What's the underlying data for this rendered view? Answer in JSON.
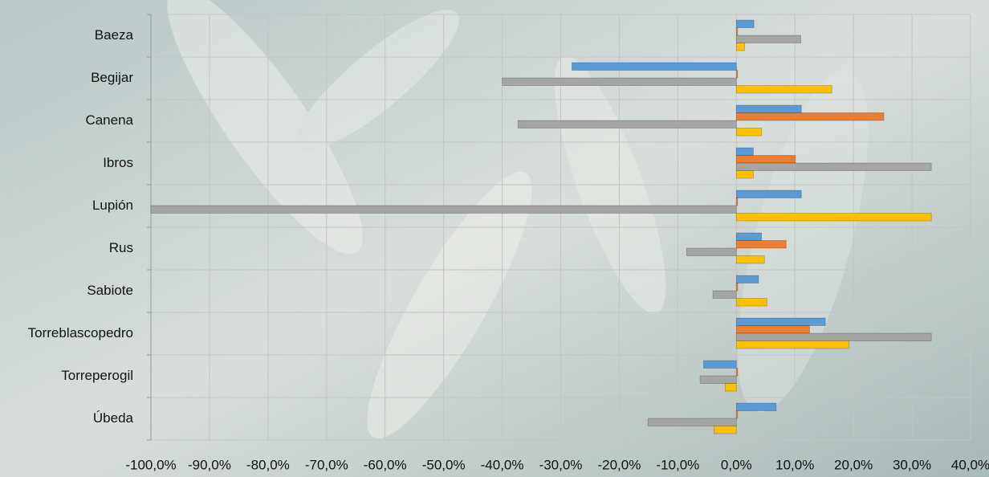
{
  "chart_data": {
    "type": "bar",
    "orientation": "horizontal",
    "categories": [
      "Baeza",
      "Begijar",
      "Canena",
      "Ibros",
      "Lupión",
      "Rus",
      "Sabiote",
      "Torreblascopedro",
      "Torreperogil",
      "Úbeda"
    ],
    "series": [
      {
        "color": "#5b9bd5",
        "values": [
          3.0,
          -28.1,
          11.1,
          2.9,
          11.1,
          4.3,
          3.8,
          15.2,
          -5.6,
          6.8
        ]
      },
      {
        "color": "#ed7d31",
        "values": [
          0,
          0,
          25.2,
          10.1,
          0,
          8.5,
          0,
          12.5,
          0,
          0
        ]
      },
      {
        "color": "#a5a5a5",
        "values": [
          11.0,
          -40.0,
          -37.3,
          33.3,
          -100.0,
          -8.5,
          -4.0,
          33.3,
          -6.2,
          -15.1
        ]
      },
      {
        "color": "#ffc000",
        "values": [
          1.4,
          16.3,
          4.3,
          2.9,
          33.3,
          4.8,
          5.2,
          19.2,
          -1.9,
          -3.8
        ]
      }
    ],
    "xlim": [
      -100,
      40
    ],
    "xticks": [
      {
        "value": -100,
        "label": "-100,0%"
      },
      {
        "value": -90,
        "label": "-90,0%"
      },
      {
        "value": -80,
        "label": "-80,0%"
      },
      {
        "value": -70,
        "label": "-70,0%"
      },
      {
        "value": -60,
        "label": "-60,0%"
      },
      {
        "value": -50,
        "label": "-50,0%"
      },
      {
        "value": -40,
        "label": "-40,0%"
      },
      {
        "value": -30,
        "label": "-30,0%"
      },
      {
        "value": -20,
        "label": "-20,0%"
      },
      {
        "value": -10,
        "label": "-10,0%"
      },
      {
        "value": 0,
        "label": "0,0%"
      },
      {
        "value": 10,
        "label": "10,0%"
      },
      {
        "value": 20,
        "label": "20,0%"
      },
      {
        "value": 30,
        "label": "30,0%"
      },
      {
        "value": 40,
        "label": "40,0%"
      }
    ],
    "grid": true
  }
}
